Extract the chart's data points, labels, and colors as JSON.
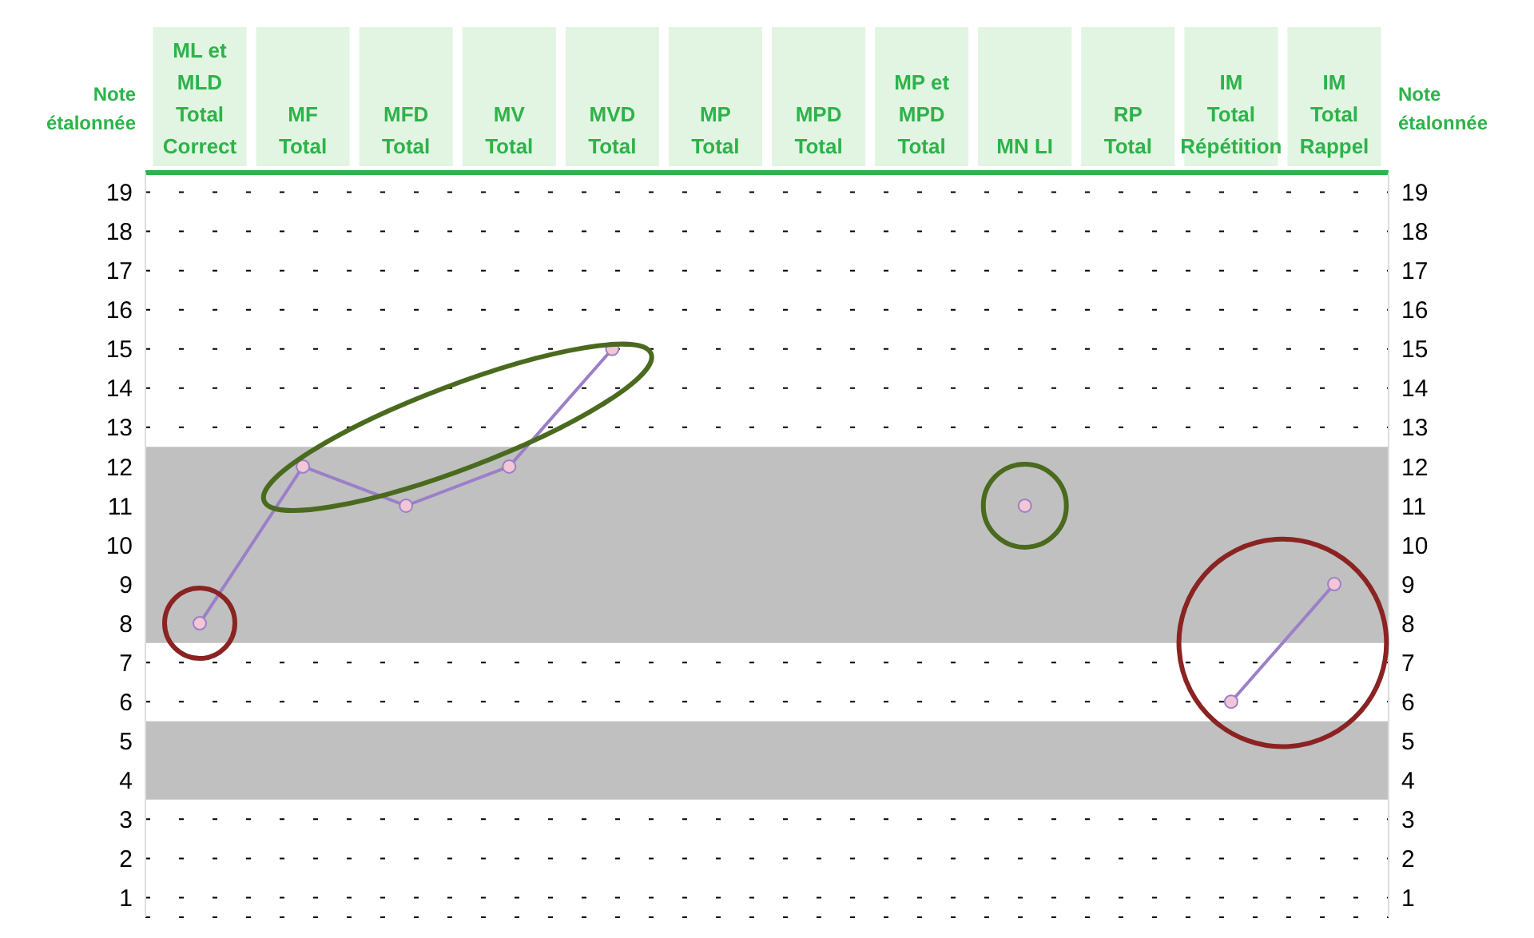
{
  "chart_data": {
    "type": "line",
    "categories": [
      "ML et MLD Total Correct",
      "MF Total",
      "MFD Total",
      "MV Total",
      "MVD Total",
      "MP Total",
      "MPD Total",
      "MP et MPD Total",
      "MN LI",
      "RP Total",
      "IM Total Répétition",
      "IM Total Rappel"
    ],
    "series": [
      {
        "color": "#9b7fc8",
        "values": [
          8,
          12,
          11,
          12,
          15,
          null,
          null,
          null,
          11,
          null,
          6,
          9
        ]
      }
    ],
    "ylabel": "Note étalonnée",
    "y2label": "Note étalonnée",
    "ylim": [
      0.5,
      19.5
    ],
    "yticks": [
      1,
      2,
      3,
      4,
      5,
      6,
      7,
      8,
      9,
      10,
      11,
      12,
      13,
      14,
      15,
      16,
      17,
      18,
      19
    ],
    "y2lim": [
      0.5,
      19.5
    ],
    "y2ticks": [
      1,
      2,
      3,
      4,
      5,
      6,
      7,
      8,
      9,
      10,
      11,
      12,
      13,
      14,
      15,
      16,
      17,
      18,
      19
    ],
    "bands": [
      {
        "axis": "y",
        "from": 3.5,
        "to": 5.5,
        "color": "#c0c0c0"
      },
      {
        "axis": "y",
        "from": 7.5,
        "to": 12.5,
        "color": "#c0c0c0"
      }
    ],
    "grid": "y",
    "marker": "circle",
    "line_style": "solid",
    "legend": false
  }
}
